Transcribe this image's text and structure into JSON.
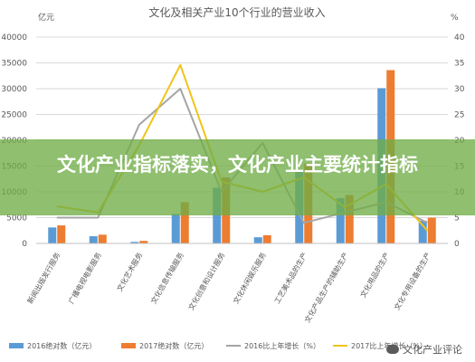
{
  "chart_data": {
    "type": "bar",
    "title": "文化及相关产业10个行业的营业收入",
    "units_left": "亿元",
    "units_right": "%",
    "categories": [
      "新闻出版发行服务",
      "广播电视电影服务",
      "文化艺术服务",
      "文化信息传输服务",
      "文化创意和设计服务",
      "文化休闲娱乐服务",
      "工艺美术品的生产",
      "文化产品生产的辅助生产",
      "文化用品的生产",
      "文化专用设备的生产"
    ],
    "ylim_left": [
      0,
      40000
    ],
    "ylim_right": [
      0,
      40
    ],
    "yticks_left": [
      "0",
      "5000",
      "10000",
      "15000",
      "20000",
      "25000",
      "30000",
      "35000",
      "40000"
    ],
    "yticks_right": [
      "0",
      "5",
      "10",
      "15",
      "20",
      "25",
      "30",
      "35",
      "40"
    ],
    "series": [
      {
        "name": "2016绝对数（亿元）",
        "kind": "bar",
        "axis": "left",
        "color": "#5b9bd5",
        "values": [
          3100,
          1400,
          300,
          5700,
          10800,
          1200,
          14200,
          8800,
          30100,
          4400
        ]
      },
      {
        "name": "2017绝对数（亿元）",
        "kind": "bar",
        "axis": "left",
        "color": "#ed7d31",
        "values": [
          3500,
          1700,
          500,
          8000,
          12800,
          1600,
          15500,
          9400,
          33600,
          5000
        ]
      },
      {
        "name": "2016比上年增长（%）",
        "kind": "line",
        "axis": "right",
        "color": "#a5a5a5",
        "values": [
          5,
          5,
          23,
          30,
          10,
          19.5,
          4,
          6,
          8,
          4
        ]
      },
      {
        "name": "2017比上年增长（%）",
        "kind": "line",
        "axis": "right",
        "color": "#f0c419",
        "values": [
          7.2,
          6,
          19,
          34.6,
          12,
          10,
          12.8,
          7,
          11.5,
          2.5
        ]
      }
    ]
  },
  "banner": {
    "title": "文化产业指标落实，文化产业主要统计指标"
  },
  "watermark": {
    "text": "文化产业评论"
  }
}
